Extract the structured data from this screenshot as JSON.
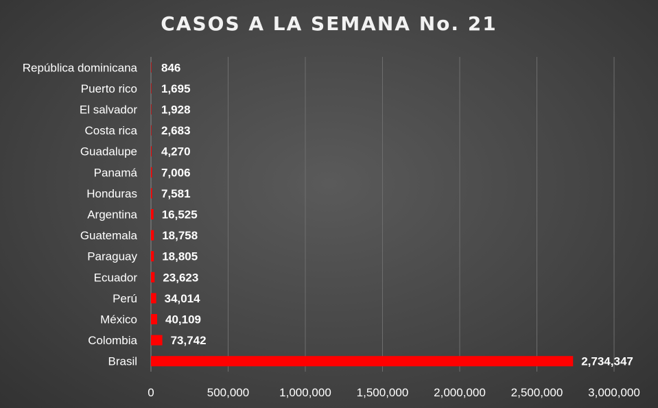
{
  "chart_data": {
    "type": "bar",
    "orientation": "horizontal",
    "title": "CASOS A LA SEMANA No. 21",
    "xlabel": "",
    "ylabel": "",
    "categories": [
      "República dominicana",
      "Puerto rico",
      "El salvador",
      "Costa rica",
      "Guadalupe",
      "Panamá",
      "Honduras",
      "Argentina",
      "Guatemala",
      "Paraguay",
      "Ecuador",
      "Perú",
      "México",
      "Colombia",
      "Brasil"
    ],
    "values": [
      846,
      1695,
      1928,
      2683,
      4270,
      7006,
      7581,
      16525,
      18758,
      18805,
      23623,
      34014,
      40109,
      73742,
      2734347
    ],
    "value_labels": [
      "846",
      "1,695",
      "1,928",
      "2,683",
      "4,270",
      "7,006",
      "7,581",
      "16,525",
      "18,758",
      "18,805",
      "23,623",
      "34,014",
      "40,109",
      "73,742",
      "2,734,347"
    ],
    "xlim": [
      0,
      3000000
    ],
    "xticks": [
      0,
      500000,
      1000000,
      1500000,
      2000000,
      2500000,
      3000000
    ],
    "xtick_labels": [
      "0",
      "500,000",
      "1,000,000",
      "1,500,000",
      "2,000,000",
      "2,500,000",
      "3,000,000"
    ],
    "grid": true,
    "legend": "none",
    "colors": {
      "bar": "#ff0000",
      "grid": "#6e6e6e",
      "text": "#ffffff",
      "background": "#4a4a4a"
    }
  }
}
